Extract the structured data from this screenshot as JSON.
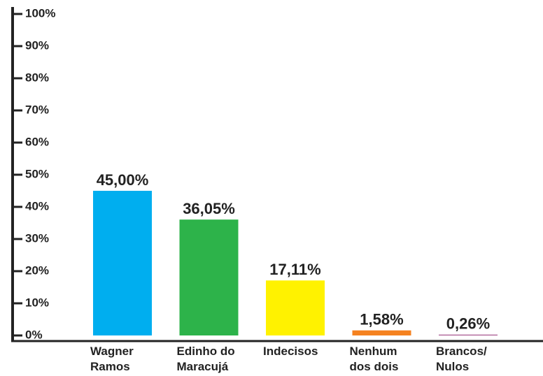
{
  "chart_data": {
    "type": "bar",
    "categories": [
      "Wagner\nRamos",
      "Edinho do\nMaracujá",
      "Indecisos",
      "Nenhum\ndos dois",
      "Brancos/\nNulos"
    ],
    "values": [
      45.0,
      36.05,
      17.11,
      1.58,
      0.26
    ],
    "value_labels": [
      "45,00%",
      "36,05%",
      "17,11%",
      "1,58%",
      "0,26%"
    ],
    "colors": [
      "#00aeef",
      "#2db34a",
      "#fff200",
      "#f58220",
      "#a4508b"
    ],
    "ylim": [
      0,
      100
    ],
    "yticks": [
      {
        "value": 0,
        "label": "0%"
      },
      {
        "value": 10,
        "label": "10%"
      },
      {
        "value": 20,
        "label": "20%"
      },
      {
        "value": 30,
        "label": "30%"
      },
      {
        "value": 40,
        "label": "40%"
      },
      {
        "value": 50,
        "label": "50%"
      },
      {
        "value": 60,
        "label": "60%"
      },
      {
        "value": 70,
        "label": "70%"
      },
      {
        "value": 80,
        "label": "80%"
      },
      {
        "value": 90,
        "label": "90%"
      },
      {
        "value": 100,
        "label": "100%"
      }
    ]
  }
}
